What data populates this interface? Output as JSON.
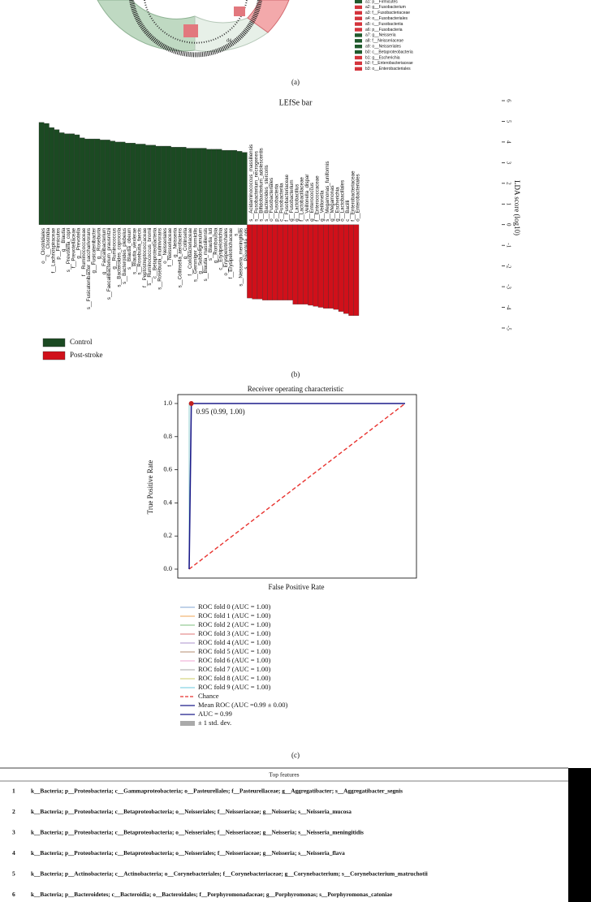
{
  "cladogram": {
    "labels": [
      "d4"
    ],
    "legend": [
      {
        "label": "a1: p__Firmicutes",
        "color": "#1f5a2c"
      },
      {
        "label": "a2: g__Fusobacterium",
        "color": "#d4343c"
      },
      {
        "label": "a3: f__Fusobacteriaceae",
        "color": "#d4343c"
      },
      {
        "label": "a4: o__Fusobacteriales",
        "color": "#d4343c"
      },
      {
        "label": "a5: c__Fusobacteriia",
        "color": "#d4343c"
      },
      {
        "label": "a6: p__Fusobacteria",
        "color": "#d4343c"
      },
      {
        "label": "a7: g__Neisseria",
        "color": "#1f5a2c"
      },
      {
        "label": "a8: f__Neisseriaceae",
        "color": "#1f5a2c"
      },
      {
        "label": "a9: o__Neisseriales",
        "color": "#1f5a2c"
      },
      {
        "label": "b0: c__Betaproteobacteria",
        "color": "#1f5a2c"
      },
      {
        "label": "b1: g__Escherichia",
        "color": "#d4343c"
      },
      {
        "label": "b2: f__Enterobacteriaceae",
        "color": "#d4343c"
      },
      {
        "label": "b3: o__Enterobacteriales",
        "color": "#d4343c"
      }
    ],
    "caption": "(a)"
  },
  "chart_data": [
    {
      "type": "bar",
      "title": "LEfSe bar",
      "y_label": "LDA score (log10)",
      "caption": "(b)",
      "categories": [
        "o__Clostridiales",
        "c__Clostridia",
        "f__Lachnospiraceae",
        "p__Firmicutes",
        "g__Blautia",
        "s__Prevotella_copri",
        "f__Prevotellaceae",
        "g__Prevotella",
        "f__Ruminococcaceae",
        "s__Fusicatenibacter_saccharivorans",
        "g__Fusicatenibacter",
        "g__Roseburia",
        "g__Faecalibacterium",
        "s__Faecalibacterium_prausnitzii",
        "g__Ruminococcus",
        "s__Bacteroides_coprocola",
        "s__Bacteroides_plebeius",
        "s__Blautia_obeum",
        "s__Blautia_wexlerae",
        "s__Roseburia_faecis",
        "f__Peptostreptococcaceae",
        "s__Ruminococcus_bromii",
        "c__Betaproteobacteria",
        "s__Roseburia_inulinivorans",
        "o__Neisseriales",
        "f__Neisseriaceae",
        "g__Neisseria",
        "s__Collinsella_aerofaciens",
        "g__Collinsella",
        "f__Coriobacteriaceae",
        "s__Gemmiger_formicilis",
        "g__Subdoligranulum",
        "s__Blautia_massiliensis",
        "s__Blautia_luti",
        "g__Romboutsia",
        "c__Erysipelotrichia",
        "o__Erysipelotrichales",
        "f__Erysipelotrichaceae",
        "s__",
        "s__Neisseria_meningitidis",
        "s__Prevotella_oris",
        "s__Acidaminococcus_massiliensis",
        "s__Fusobacterium_necrogenes",
        "s__Bifidobacterium_adolescentis",
        "s__Bacteroides_stercoris",
        "o__Fusobacteriales",
        "p__Fusobacteria",
        "c__Fusobacteriia",
        "f__Fusobacteriaceae",
        "g__Fusobacterium",
        "g__Lactobacillus",
        "f__Lactobacillaceae",
        "s__Veillonella_dispar",
        "g__Enterococcus",
        "f__Enterococcaceae",
        "g__Veillonella",
        "s__Megamonas_funiformis",
        "g__Megamonas",
        "g__Escherichia",
        "o__Lactobacillales",
        "c__Bacilli",
        "f__Enterobacteriaceae",
        "o__Enterobacteriales"
      ],
      "series": [
        {
          "name": "Control",
          "color": "#1b4a22",
          "values": [
            4.95,
            4.9,
            4.7,
            4.6,
            4.45,
            4.4,
            4.4,
            4.35,
            4.2,
            4.15,
            4.15,
            4.15,
            4.1,
            4.1,
            4.05,
            4.0,
            4.0,
            3.95,
            3.95,
            3.9,
            3.9,
            3.85,
            3.85,
            3.8,
            3.8,
            3.8,
            3.75,
            3.75,
            3.75,
            3.7,
            3.7,
            3.7,
            3.7,
            3.65,
            3.65,
            3.65,
            3.6,
            3.6,
            3.6,
            3.55,
            3.5,
            null,
            null,
            null,
            null,
            null,
            null,
            null,
            null,
            null,
            null,
            null,
            null,
            null,
            null,
            null,
            null,
            null,
            null,
            null,
            null,
            null,
            null
          ]
        },
        {
          "name": "Post-stroke",
          "color": "#d0101a",
          "values": [
            null,
            null,
            null,
            null,
            null,
            null,
            null,
            null,
            null,
            null,
            null,
            null,
            null,
            null,
            null,
            null,
            null,
            null,
            null,
            null,
            null,
            null,
            null,
            null,
            null,
            null,
            null,
            null,
            null,
            null,
            null,
            null,
            null,
            null,
            null,
            null,
            null,
            null,
            null,
            null,
            null,
            -3.55,
            -3.6,
            -3.6,
            -3.65,
            -3.65,
            -3.65,
            -3.65,
            -3.65,
            -3.65,
            -3.85,
            -3.85,
            -3.85,
            -3.9,
            -3.95,
            -4.0,
            -4.05,
            -4.05,
            -4.1,
            -4.2,
            -4.3,
            -4.4,
            -4.4
          ]
        }
      ],
      "ylim": [
        -5,
        6
      ],
      "yticks": [
        -5,
        -4,
        -3,
        -2,
        -1,
        0,
        1,
        2,
        3,
        4,
        5,
        6
      ]
    },
    {
      "type": "line",
      "title": "Receiver operating characteristic",
      "x_label": "False Positive Rate",
      "y_label": "True Positive Rate",
      "caption": "(c)",
      "xlim": [
        0,
        1
      ],
      "ylim": [
        0,
        1
      ],
      "yticks": [
        {
          "value": 0,
          "label": "0.0"
        },
        {
          "value": 0.2,
          "label": "0.2"
        },
        {
          "value": 0.4,
          "label": "0.4"
        },
        {
          "value": 0.6,
          "label": "0.6"
        },
        {
          "value": 0.8,
          "label": "0.8"
        },
        {
          "value": 1,
          "label": "1.0"
        }
      ],
      "series": [
        {
          "name": "ROC fold 0 (AUC = 1.00)",
          "color": "#9ab8dc",
          "x": [
            0,
            0,
            1
          ],
          "values": [
            0,
            1,
            1
          ]
        },
        {
          "name": "ROC fold 1 (AUC = 1.00)",
          "color": "#f2b777",
          "x": [
            0,
            0,
            1
          ],
          "values": [
            0,
            1,
            1
          ]
        },
        {
          "name": "ROC fold 2 (AUC = 1.00)",
          "color": "#96cc96",
          "x": [
            0,
            0,
            1
          ],
          "values": [
            0,
            1,
            1
          ]
        },
        {
          "name": "ROC fold 3 (AUC = 1.00)",
          "color": "#e59090",
          "x": [
            0,
            0,
            1
          ],
          "values": [
            0,
            1,
            1
          ]
        },
        {
          "name": "ROC fold 4 (AUC = 1.00)",
          "color": "#bca6d6",
          "x": [
            0,
            0,
            1
          ],
          "values": [
            0,
            1,
            1
          ]
        },
        {
          "name": "ROC fold 5 (AUC = 1.00)",
          "color": "#c4a48e",
          "x": [
            0,
            0,
            1
          ],
          "values": [
            0,
            1,
            1
          ]
        },
        {
          "name": "ROC fold 6 (AUC = 1.00)",
          "color": "#f2b6da",
          "x": [
            0,
            0,
            1
          ],
          "values": [
            0,
            1,
            1
          ]
        },
        {
          "name": "ROC fold 7 (AUC = 1.00)",
          "color": "#b8b8b8",
          "x": [
            0,
            0,
            1
          ],
          "values": [
            0,
            1,
            1
          ]
        },
        {
          "name": "ROC fold 8 (AUC = 1.00)",
          "color": "#d6d684",
          "x": [
            0,
            0,
            1
          ],
          "values": [
            0,
            1,
            1
          ]
        },
        {
          "name": "ROC fold 9 (AUC = 1.00)",
          "color": "#86d4e4",
          "x": [
            0,
            0,
            1
          ],
          "values": [
            0,
            1,
            1
          ]
        },
        {
          "name": "Chance",
          "color": "#e8322e",
          "dashed": true,
          "x": [
            0,
            1
          ],
          "values": [
            0,
            1
          ]
        },
        {
          "name": "Mean ROC (AUC =0.99 ± 0.00)",
          "color": "#1c1c8a",
          "x": [
            0,
            0.01,
            1
          ],
          "values": [
            0,
            1,
            1
          ]
        }
      ],
      "extra_legend": [
        {
          "name": "AUC = 0.99",
          "color": "#1c1c8a"
        },
        {
          "name": "± 1 std. dev.",
          "color": "#aaaaaa",
          "patch": true
        }
      ],
      "annotation": {
        "text": "0.95 (0.99, 1.00)",
        "x": 0.01,
        "y": 1,
        "color": "#c02020"
      }
    }
  ],
  "table": {
    "title": "Top features",
    "rows": [
      [
        1,
        "k__Bacteria; p__Proteobacteria; c__Gammaproteobacteria; o__Pasteurellales; f__Pasteurellaceae; g__Aggregatibacter; s__Aggregatibacter_segnis"
      ],
      [
        2,
        "k__Bacteria; p__Proteobacteria; c__Betaproteobacteria; o__Neisseriales; f__Neisseriaceae; g__Neisseria; s__Neisseria_mucosa"
      ],
      [
        3,
        "k__Bacteria; p__Proteobacteria; c__Betaproteobacteria; o__Neisseriales; f__Neisseriaceae; g__Neisseria; s__Neisseria_meningitidis"
      ],
      [
        4,
        "k__Bacteria; p__Proteobacteria; c__Betaproteobacteria; o__Neisseriales; f__Neisseriaceae; g__Neisseria; s__Neisseria_flava"
      ],
      [
        5,
        "k__Bacteria; p__Actinobacteria; c__Actinobacteria; o__Corynebacteriales; f__Corynebacteriaceae; g__Corynebacterium; s__Corynebacterium_matruchotii"
      ],
      [
        6,
        "k__Bacteria; p__Bacteroidetes; c__Bacteroidia; o__Bacteroidales; f__Porphyromonadaceae; g__Porphyromonas; s__Porphyromonas_catoniae"
      ]
    ]
  }
}
